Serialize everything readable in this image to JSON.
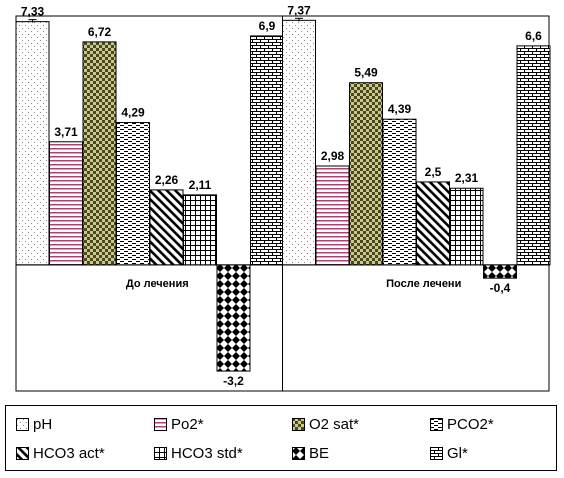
{
  "chart_data": {
    "type": "bar",
    "categories": [
      "До лечения",
      "После лечени"
    ],
    "value_labels": [
      [
        "7,33",
        "3,71",
        "6,72",
        "4,29",
        "2,26",
        "2,11",
        "-3,2",
        "6,9"
      ],
      [
        "7,37",
        "2,98",
        "5,49",
        "4,39",
        "2,5",
        "2,31",
        "-0,4",
        "6,6"
      ]
    ],
    "series": [
      {
        "name": "pH",
        "values": [
          7.33,
          7.37
        ],
        "pattern": "dots"
      },
      {
        "name": "Po2*",
        "values": [
          3.71,
          2.98
        ],
        "pattern": "hlines"
      },
      {
        "name": "O2 sat*",
        "values": [
          6.72,
          5.49
        ],
        "pattern": "checker"
      },
      {
        "name": "PCO2*",
        "values": [
          4.29,
          4.39
        ],
        "pattern": "hdash"
      },
      {
        "name": "HCO3 act*",
        "values": [
          2.26,
          2.5
        ],
        "pattern": "diag"
      },
      {
        "name": "HCO3 std*",
        "values": [
          2.11,
          2.31
        ],
        "pattern": "grid"
      },
      {
        "name": "BE",
        "values": [
          -3.2,
          -0.4
        ],
        "pattern": "diamond"
      },
      {
        "name": "Gl*",
        "values": [
          6.9,
          6.6
        ],
        "pattern": "brick"
      }
    ],
    "ylim": [
      -3.8,
      7.5
    ],
    "error_bar_on": "pH",
    "colors": {
      "Po2*": "#c0387a",
      "O2 sat*": "#4b4a14",
      "bars": "#000000"
    },
    "legend_position": "bottom"
  }
}
